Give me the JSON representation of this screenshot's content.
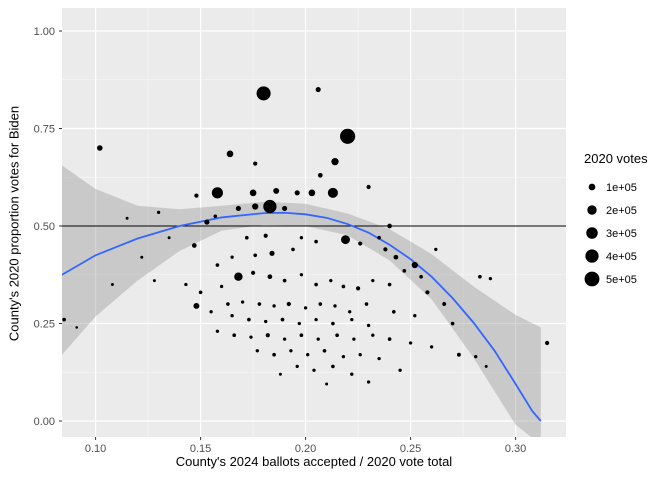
{
  "chart_data": {
    "type": "scatter",
    "title": "",
    "xlabel": "County's 2024 ballots accepted / 2020 vote total",
    "ylabel": "County's 2020 proportion votes for Biden",
    "x_ticks": [
      0.1,
      0.15,
      0.2,
      0.25,
      0.3
    ],
    "x_tick_labels": [
      "0.10",
      "0.15",
      "0.20",
      "0.25",
      "0.30"
    ],
    "y_ticks": [
      0.0,
      0.25,
      0.5,
      0.75,
      1.0
    ],
    "y_tick_labels": [
      "0.00",
      "0.25",
      "0.50",
      "0.75",
      "1.00"
    ],
    "x_domain": [
      0.084,
      0.324
    ],
    "y_domain": [
      -0.041,
      1.059
    ],
    "grid": true,
    "hline_y": 0.5,
    "legend": {
      "position": "right",
      "title": "2020 votes",
      "entries": [
        {
          "label": "1e+05",
          "value": 100000
        },
        {
          "label": "2e+05",
          "value": 200000
        },
        {
          "label": "3e+05",
          "value": 300000
        },
        {
          "label": "4e+05",
          "value": 400000
        },
        {
          "label": "5e+05",
          "value": 500000
        }
      ]
    },
    "colors": {
      "panel_bg": "#ebebeb",
      "grid_major": "#ffffff",
      "grid_minor": "#f5f5f5",
      "point": "#000000",
      "smooth_line": "#3366ff",
      "ci_band": "#9a9a9a",
      "hline": "#000000",
      "tick_text": "#4d4d4d",
      "tick_mark": "#333333",
      "background": "#ffffff"
    },
    "size_scale": {
      "coef": 0.0105
    },
    "points": [
      [
        0.18,
        0.84,
        450000
      ],
      [
        0.206,
        0.85,
        60000
      ],
      [
        0.22,
        0.73,
        520000
      ],
      [
        0.102,
        0.7,
        70000
      ],
      [
        0.164,
        0.685,
        100000
      ],
      [
        0.176,
        0.66,
        40000
      ],
      [
        0.214,
        0.665,
        120000
      ],
      [
        0.207,
        0.63,
        50000
      ],
      [
        0.23,
        0.6,
        40000
      ],
      [
        0.158,
        0.585,
        280000
      ],
      [
        0.148,
        0.578,
        40000
      ],
      [
        0.175,
        0.585,
        100000
      ],
      [
        0.186,
        0.59,
        80000
      ],
      [
        0.196,
        0.585,
        60000
      ],
      [
        0.203,
        0.585,
        100000
      ],
      [
        0.213,
        0.585,
        230000
      ],
      [
        0.168,
        0.545,
        60000
      ],
      [
        0.176,
        0.55,
        90000
      ],
      [
        0.183,
        0.55,
        400000
      ],
      [
        0.19,
        0.545,
        60000
      ],
      [
        0.157,
        0.525,
        30000
      ],
      [
        0.153,
        0.51,
        60000
      ],
      [
        0.115,
        0.52,
        20000
      ],
      [
        0.13,
        0.535,
        25000
      ],
      [
        0.24,
        0.5,
        50000
      ],
      [
        0.135,
        0.47,
        20000
      ],
      [
        0.147,
        0.45,
        50000
      ],
      [
        0.172,
        0.47,
        30000
      ],
      [
        0.181,
        0.475,
        40000
      ],
      [
        0.198,
        0.47,
        25000
      ],
      [
        0.205,
        0.46,
        30000
      ],
      [
        0.219,
        0.465,
        180000
      ],
      [
        0.226,
        0.455,
        40000
      ],
      [
        0.235,
        0.47,
        30000
      ],
      [
        0.238,
        0.44,
        40000
      ],
      [
        0.243,
        0.42,
        50000
      ],
      [
        0.252,
        0.4,
        90000
      ],
      [
        0.247,
        0.385,
        30000
      ],
      [
        0.262,
        0.44,
        25000
      ],
      [
        0.194,
        0.44,
        30000
      ],
      [
        0.184,
        0.43,
        60000
      ],
      [
        0.176,
        0.425,
        30000
      ],
      [
        0.165,
        0.42,
        25000
      ],
      [
        0.158,
        0.4,
        30000
      ],
      [
        0.122,
        0.42,
        20000
      ],
      [
        0.108,
        0.35,
        20000
      ],
      [
        0.128,
        0.36,
        20000
      ],
      [
        0.143,
        0.35,
        25000
      ],
      [
        0.15,
        0.33,
        30000
      ],
      [
        0.16,
        0.345,
        25000
      ],
      [
        0.168,
        0.37,
        160000
      ],
      [
        0.175,
        0.38,
        40000
      ],
      [
        0.183,
        0.37,
        50000
      ],
      [
        0.19,
        0.36,
        30000
      ],
      [
        0.198,
        0.375,
        25000
      ],
      [
        0.205,
        0.35,
        30000
      ],
      [
        0.212,
        0.36,
        25000
      ],
      [
        0.218,
        0.345,
        30000
      ],
      [
        0.225,
        0.34,
        40000
      ],
      [
        0.232,
        0.36,
        25000
      ],
      [
        0.24,
        0.35,
        30000
      ],
      [
        0.255,
        0.37,
        30000
      ],
      [
        0.258,
        0.33,
        40000
      ],
      [
        0.266,
        0.3,
        35000
      ],
      [
        0.283,
        0.37,
        30000
      ],
      [
        0.288,
        0.365,
        25000
      ],
      [
        0.085,
        0.26,
        30000
      ],
      [
        0.091,
        0.24,
        15000
      ],
      [
        0.148,
        0.295,
        80000
      ],
      [
        0.155,
        0.28,
        25000
      ],
      [
        0.163,
        0.3,
        30000
      ],
      [
        0.17,
        0.305,
        25000
      ],
      [
        0.178,
        0.3,
        30000
      ],
      [
        0.185,
        0.295,
        25000
      ],
      [
        0.192,
        0.3,
        40000
      ],
      [
        0.2,
        0.29,
        25000
      ],
      [
        0.207,
        0.3,
        30000
      ],
      [
        0.214,
        0.295,
        25000
      ],
      [
        0.221,
        0.28,
        25000
      ],
      [
        0.229,
        0.3,
        30000
      ],
      [
        0.242,
        0.28,
        30000
      ],
      [
        0.252,
        0.27,
        25000
      ],
      [
        0.27,
        0.25,
        30000
      ],
      [
        0.165,
        0.27,
        25000
      ],
      [
        0.173,
        0.26,
        30000
      ],
      [
        0.181,
        0.255,
        25000
      ],
      [
        0.189,
        0.26,
        30000
      ],
      [
        0.197,
        0.25,
        25000
      ],
      [
        0.205,
        0.26,
        25000
      ],
      [
        0.213,
        0.25,
        30000
      ],
      [
        0.222,
        0.26,
        25000
      ],
      [
        0.23,
        0.245,
        25000
      ],
      [
        0.158,
        0.23,
        25000
      ],
      [
        0.166,
        0.22,
        30000
      ],
      [
        0.174,
        0.215,
        25000
      ],
      [
        0.182,
        0.22,
        40000
      ],
      [
        0.19,
        0.21,
        25000
      ],
      [
        0.198,
        0.22,
        30000
      ],
      [
        0.206,
        0.21,
        25000
      ],
      [
        0.215,
        0.22,
        30000
      ],
      [
        0.223,
        0.21,
        25000
      ],
      [
        0.232,
        0.22,
        25000
      ],
      [
        0.24,
        0.21,
        30000
      ],
      [
        0.25,
        0.2,
        25000
      ],
      [
        0.26,
        0.19,
        25000
      ],
      [
        0.273,
        0.17,
        35000
      ],
      [
        0.281,
        0.165,
        25000
      ],
      [
        0.286,
        0.14,
        20000
      ],
      [
        0.315,
        0.2,
        40000
      ],
      [
        0.177,
        0.18,
        25000
      ],
      [
        0.185,
        0.17,
        30000
      ],
      [
        0.193,
        0.18,
        25000
      ],
      [
        0.201,
        0.17,
        25000
      ],
      [
        0.209,
        0.18,
        30000
      ],
      [
        0.218,
        0.165,
        25000
      ],
      [
        0.226,
        0.17,
        25000
      ],
      [
        0.235,
        0.16,
        25000
      ],
      [
        0.196,
        0.14,
        25000
      ],
      [
        0.204,
        0.13,
        25000
      ],
      [
        0.213,
        0.14,
        30000
      ],
      [
        0.222,
        0.12,
        25000
      ],
      [
        0.245,
        0.13,
        25000
      ],
      [
        0.188,
        0.12,
        20000
      ],
      [
        0.23,
        0.1,
        25000
      ],
      [
        0.21,
        0.095,
        20000
      ]
    ],
    "smooth_line": [
      [
        0.084,
        0.375
      ],
      [
        0.1,
        0.425
      ],
      [
        0.12,
        0.468
      ],
      [
        0.14,
        0.5
      ],
      [
        0.16,
        0.522
      ],
      [
        0.18,
        0.533
      ],
      [
        0.19,
        0.534
      ],
      [
        0.2,
        0.53
      ],
      [
        0.21,
        0.521
      ],
      [
        0.22,
        0.505
      ],
      [
        0.23,
        0.483
      ],
      [
        0.24,
        0.452
      ],
      [
        0.25,
        0.415
      ],
      [
        0.26,
        0.37
      ],
      [
        0.27,
        0.315
      ],
      [
        0.28,
        0.252
      ],
      [
        0.29,
        0.18
      ],
      [
        0.3,
        0.095
      ],
      [
        0.308,
        0.025
      ],
      [
        0.312,
        0.0
      ]
    ],
    "ci_upper": [
      [
        0.084,
        0.655
      ],
      [
        0.1,
        0.595
      ],
      [
        0.12,
        0.552
      ],
      [
        0.14,
        0.543
      ],
      [
        0.16,
        0.552
      ],
      [
        0.18,
        0.562
      ],
      [
        0.2,
        0.557
      ],
      [
        0.22,
        0.532
      ],
      [
        0.24,
        0.492
      ],
      [
        0.26,
        0.428
      ],
      [
        0.28,
        0.345
      ],
      [
        0.3,
        0.272
      ],
      [
        0.312,
        0.24
      ]
    ],
    "ci_lower": [
      [
        0.084,
        0.17
      ],
      [
        0.1,
        0.268
      ],
      [
        0.12,
        0.36
      ],
      [
        0.14,
        0.436
      ],
      [
        0.16,
        0.488
      ],
      [
        0.18,
        0.503
      ],
      [
        0.2,
        0.5
      ],
      [
        0.22,
        0.476
      ],
      [
        0.24,
        0.412
      ],
      [
        0.26,
        0.312
      ],
      [
        0.28,
        0.162
      ],
      [
        0.3,
        -0.01
      ],
      [
        0.312,
        -0.06
      ]
    ]
  }
}
